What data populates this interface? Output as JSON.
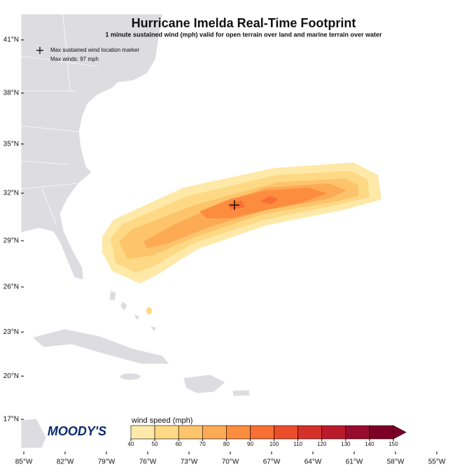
{
  "header": {
    "title": "Hurricane Imelda Real-Time Footprint",
    "subtitle": "1 minute sustained wind (mph) valid for open terrain over land and marine terrain over water"
  },
  "legend": {
    "marker_label": "Max sustained wind location marker",
    "max_winds": "Max winds: 97 mph"
  },
  "logo": "MOODY'S",
  "map": {
    "lat_ticks": [
      {
        "value": 41,
        "label": "41°N"
      },
      {
        "value": 38,
        "label": "38°N"
      },
      {
        "value": 35,
        "label": "35°N"
      },
      {
        "value": 32,
        "label": "32°N"
      },
      {
        "value": 29,
        "label": "29°N"
      },
      {
        "value": 26,
        "label": "26°N"
      },
      {
        "value": 23,
        "label": "23°N"
      },
      {
        "value": 20,
        "label": "20°N"
      },
      {
        "value": 17,
        "label": "17°N"
      }
    ],
    "lon_ticks": [
      {
        "value": -85,
        "label": "85°W"
      },
      {
        "value": -82,
        "label": "82°W"
      },
      {
        "value": -79,
        "label": "79°W"
      },
      {
        "value": -76,
        "label": "76°W"
      },
      {
        "value": -73,
        "label": "73°W"
      },
      {
        "value": -70,
        "label": "70°W"
      },
      {
        "value": -67,
        "label": "67°W"
      },
      {
        "value": -64,
        "label": "64°W"
      },
      {
        "value": -61,
        "label": "61°W"
      },
      {
        "value": -58,
        "label": "58°W"
      },
      {
        "value": -55,
        "label": "55°W"
      }
    ]
  },
  "colorbar": {
    "title": "wind speed (mph)",
    "ticks": [
      40,
      50,
      60,
      70,
      80,
      90,
      100,
      110,
      120,
      130,
      140,
      150
    ],
    "colors": [
      "#ffe9a8",
      "#fed985",
      "#fdc46c",
      "#fdaa55",
      "#fc8d3f",
      "#f86e33",
      "#ec4d2b",
      "#d6302a",
      "#b91a2c",
      "#990b2d",
      "#7e0027"
    ]
  }
}
